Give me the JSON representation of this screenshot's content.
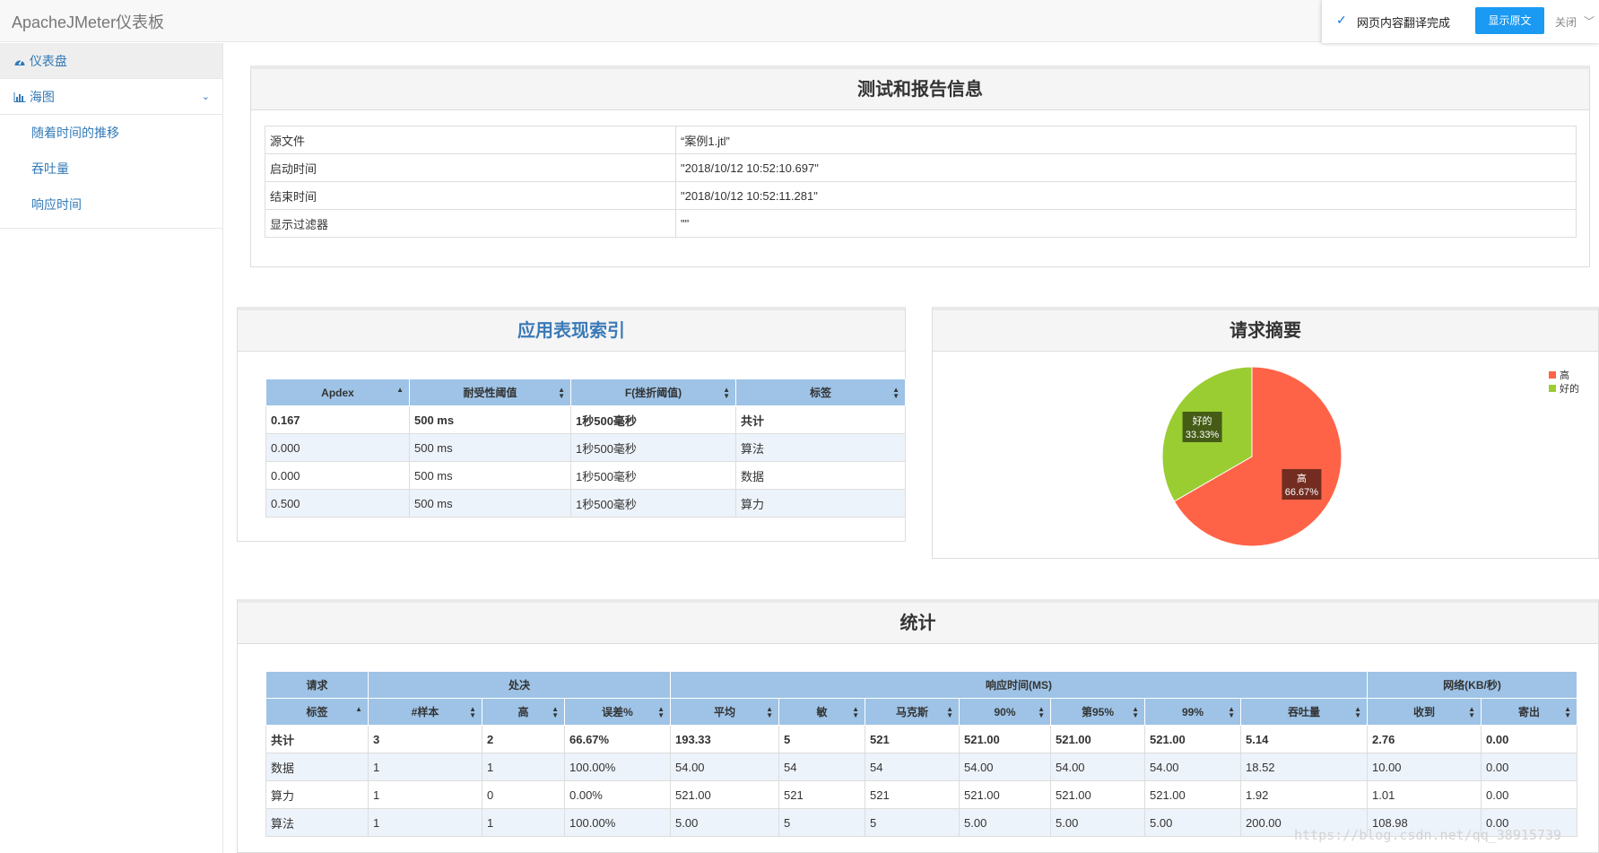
{
  "app": {
    "title": "ApacheJMeter仪表板"
  },
  "translate": {
    "check": "✓",
    "status": "网页内容翻译完成",
    "show_original": "显示原文",
    "close": "关闭",
    "dropdown": "﹀"
  },
  "sidebar": {
    "dashboard": "仪表盘",
    "charts": "海图",
    "sub": [
      "随着时间的推移",
      "吞吐量",
      "响应时间"
    ]
  },
  "test_info": {
    "title": "测试和报告信息",
    "rows": [
      {
        "key": "源文件",
        "value": "“案例1.jtl”"
      },
      {
        "key": "启动时间",
        "value": "\"2018/10/12 10:52:10.697\""
      },
      {
        "key": "结束时间",
        "value": "\"2018/10/12 10:52:11.281\""
      },
      {
        "key": "显示过滤器",
        "value": "\"\""
      }
    ]
  },
  "apdex": {
    "title": "应用表现索引",
    "headers": [
      "Apdex",
      "耐受性阈值",
      "F(挫折阈值)",
      "标签"
    ],
    "rows": [
      [
        "0.167",
        "500 ms",
        "1秒500毫秒",
        "共计"
      ],
      [
        "0.000",
        "500 ms",
        "1秒500毫秒",
        "算法"
      ],
      [
        "0.000",
        "500 ms",
        "1秒500毫秒",
        "数据"
      ],
      [
        "0.500",
        "500 ms",
        "1秒500毫秒",
        "算力"
      ]
    ]
  },
  "summary": {
    "title": "请求摘要",
    "slices": [
      {
        "label": "高",
        "percent": "66.67%",
        "value": 66.67,
        "color": "#ff6347"
      },
      {
        "label": "好的",
        "percent": "33.33%",
        "value": 33.33,
        "color": "#9acd32"
      }
    ],
    "legend": [
      "高",
      "好的"
    ]
  },
  "stats": {
    "title": "统计",
    "groups": [
      "请求",
      "处决",
      "响应时间(MS)",
      "网络(KB/秒)"
    ],
    "headers": [
      "标签",
      "#样本",
      "高",
      "误差%",
      "平均",
      "敏",
      "马克斯",
      "90%",
      "第95%",
      "99%",
      "吞吐量",
      "收到",
      "寄出"
    ],
    "rows": [
      [
        "共计",
        "3",
        "2",
        "66.67%",
        "193.33",
        "5",
        "521",
        "521.00",
        "521.00",
        "521.00",
        "5.14",
        "2.76",
        "0.00"
      ],
      [
        "数据",
        "1",
        "1",
        "100.00%",
        "54.00",
        "54",
        "54",
        "54.00",
        "54.00",
        "54.00",
        "18.52",
        "10.00",
        "0.00"
      ],
      [
        "算力",
        "1",
        "0",
        "0.00%",
        "521.00",
        "521",
        "521",
        "521.00",
        "521.00",
        "521.00",
        "1.92",
        "1.01",
        "0.00"
      ],
      [
        "算法",
        "1",
        "1",
        "100.00%",
        "5.00",
        "5",
        "5",
        "5.00",
        "5.00",
        "5.00",
        "200.00",
        "108.98",
        "0.00"
      ]
    ]
  },
  "watermark": "https://blog.csdn.net/qq_38915739"
}
